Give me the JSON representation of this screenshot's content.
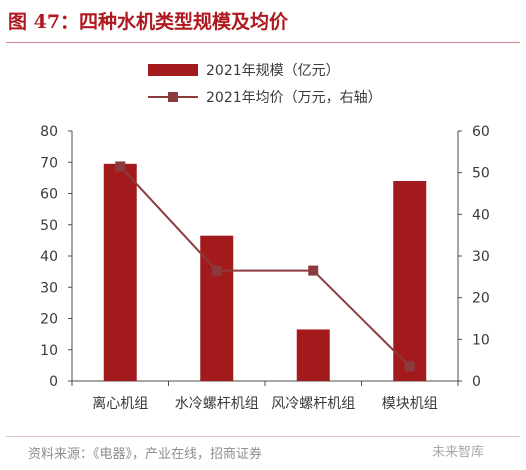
{
  "figure": {
    "title": "图 47：四种水机类型规模及均价",
    "source": "资料来源：《电器》，产业在线，招商证券",
    "watermark": "未来智库"
  },
  "colors": {
    "title": "#b0181f",
    "bar": "#a31a1d",
    "line": "#8b3a3e",
    "marker": "#8b3a3e",
    "axis": "#4d4d4d",
    "tick_text": "#3a3a3a"
  },
  "chart_data": {
    "type": "bar",
    "categories": [
      "离心机组",
      "水冷螺杆机组",
      "风冷螺杆机组",
      "模块机组"
    ],
    "series": [
      {
        "name": "2021年规模（亿元）",
        "type": "bar",
        "axis": "left",
        "values": [
          69.5,
          46.5,
          16.5,
          64
        ]
      },
      {
        "name": "2021年均价（万元，右轴）",
        "type": "line",
        "axis": "right",
        "values": [
          51.5,
          26.5,
          26.5,
          3.5
        ]
      }
    ],
    "y_left": {
      "min": 0,
      "max": 80,
      "ticks": [
        "0",
        "10",
        "20",
        "30",
        "40",
        "50",
        "60",
        "70",
        "80"
      ]
    },
    "y_right": {
      "min": 0,
      "max": 60,
      "ticks": [
        "0",
        "10",
        "20",
        "30",
        "40",
        "50",
        "60"
      ]
    },
    "grid": false,
    "legend_position": "top-center"
  }
}
